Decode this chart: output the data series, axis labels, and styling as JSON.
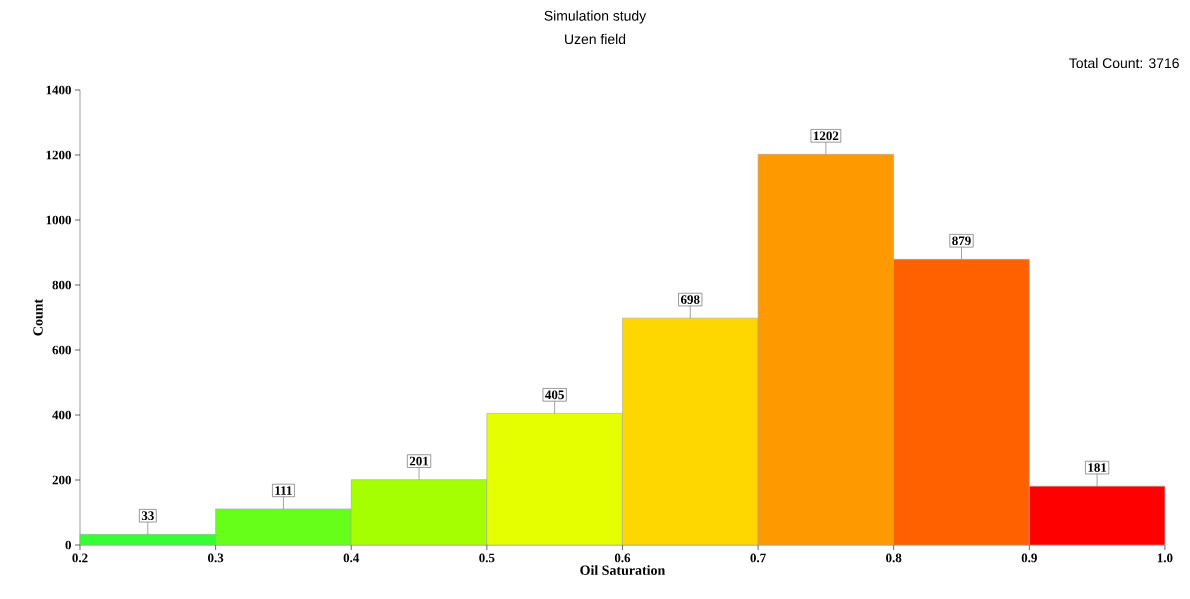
{
  "chart_data": {
    "type": "histogram",
    "title": "Simulation study",
    "subtitle": "Uzen field",
    "xlabel": "Oil Saturation",
    "ylabel": "Count",
    "annotations": [
      "Total Count: 3716"
    ],
    "bins": [
      0.2,
      0.3,
      0.4,
      0.5,
      0.6,
      0.7,
      0.8,
      0.9,
      1.0
    ],
    "values": [
      33,
      111,
      201,
      405,
      698,
      1202,
      879,
      181
    ],
    "colors": [
      "#33ff33",
      "#66ff1a",
      "#a6ff00",
      "#e6ff00",
      "#ffd700",
      "#ff9900",
      "#ff6000",
      "#ff0000"
    ],
    "xlim": [
      0.2,
      1.0
    ],
    "ylim": [
      0,
      1400
    ],
    "xticks": [
      0.2,
      0.3,
      0.4,
      0.5,
      0.6,
      0.7,
      0.8,
      0.9,
      {
        "value": 1.0,
        "label": "1.0"
      }
    ],
    "yticks": [
      0,
      200,
      400,
      600,
      800,
      1000,
      1200,
      1400
    ],
    "data_labels": true
  }
}
